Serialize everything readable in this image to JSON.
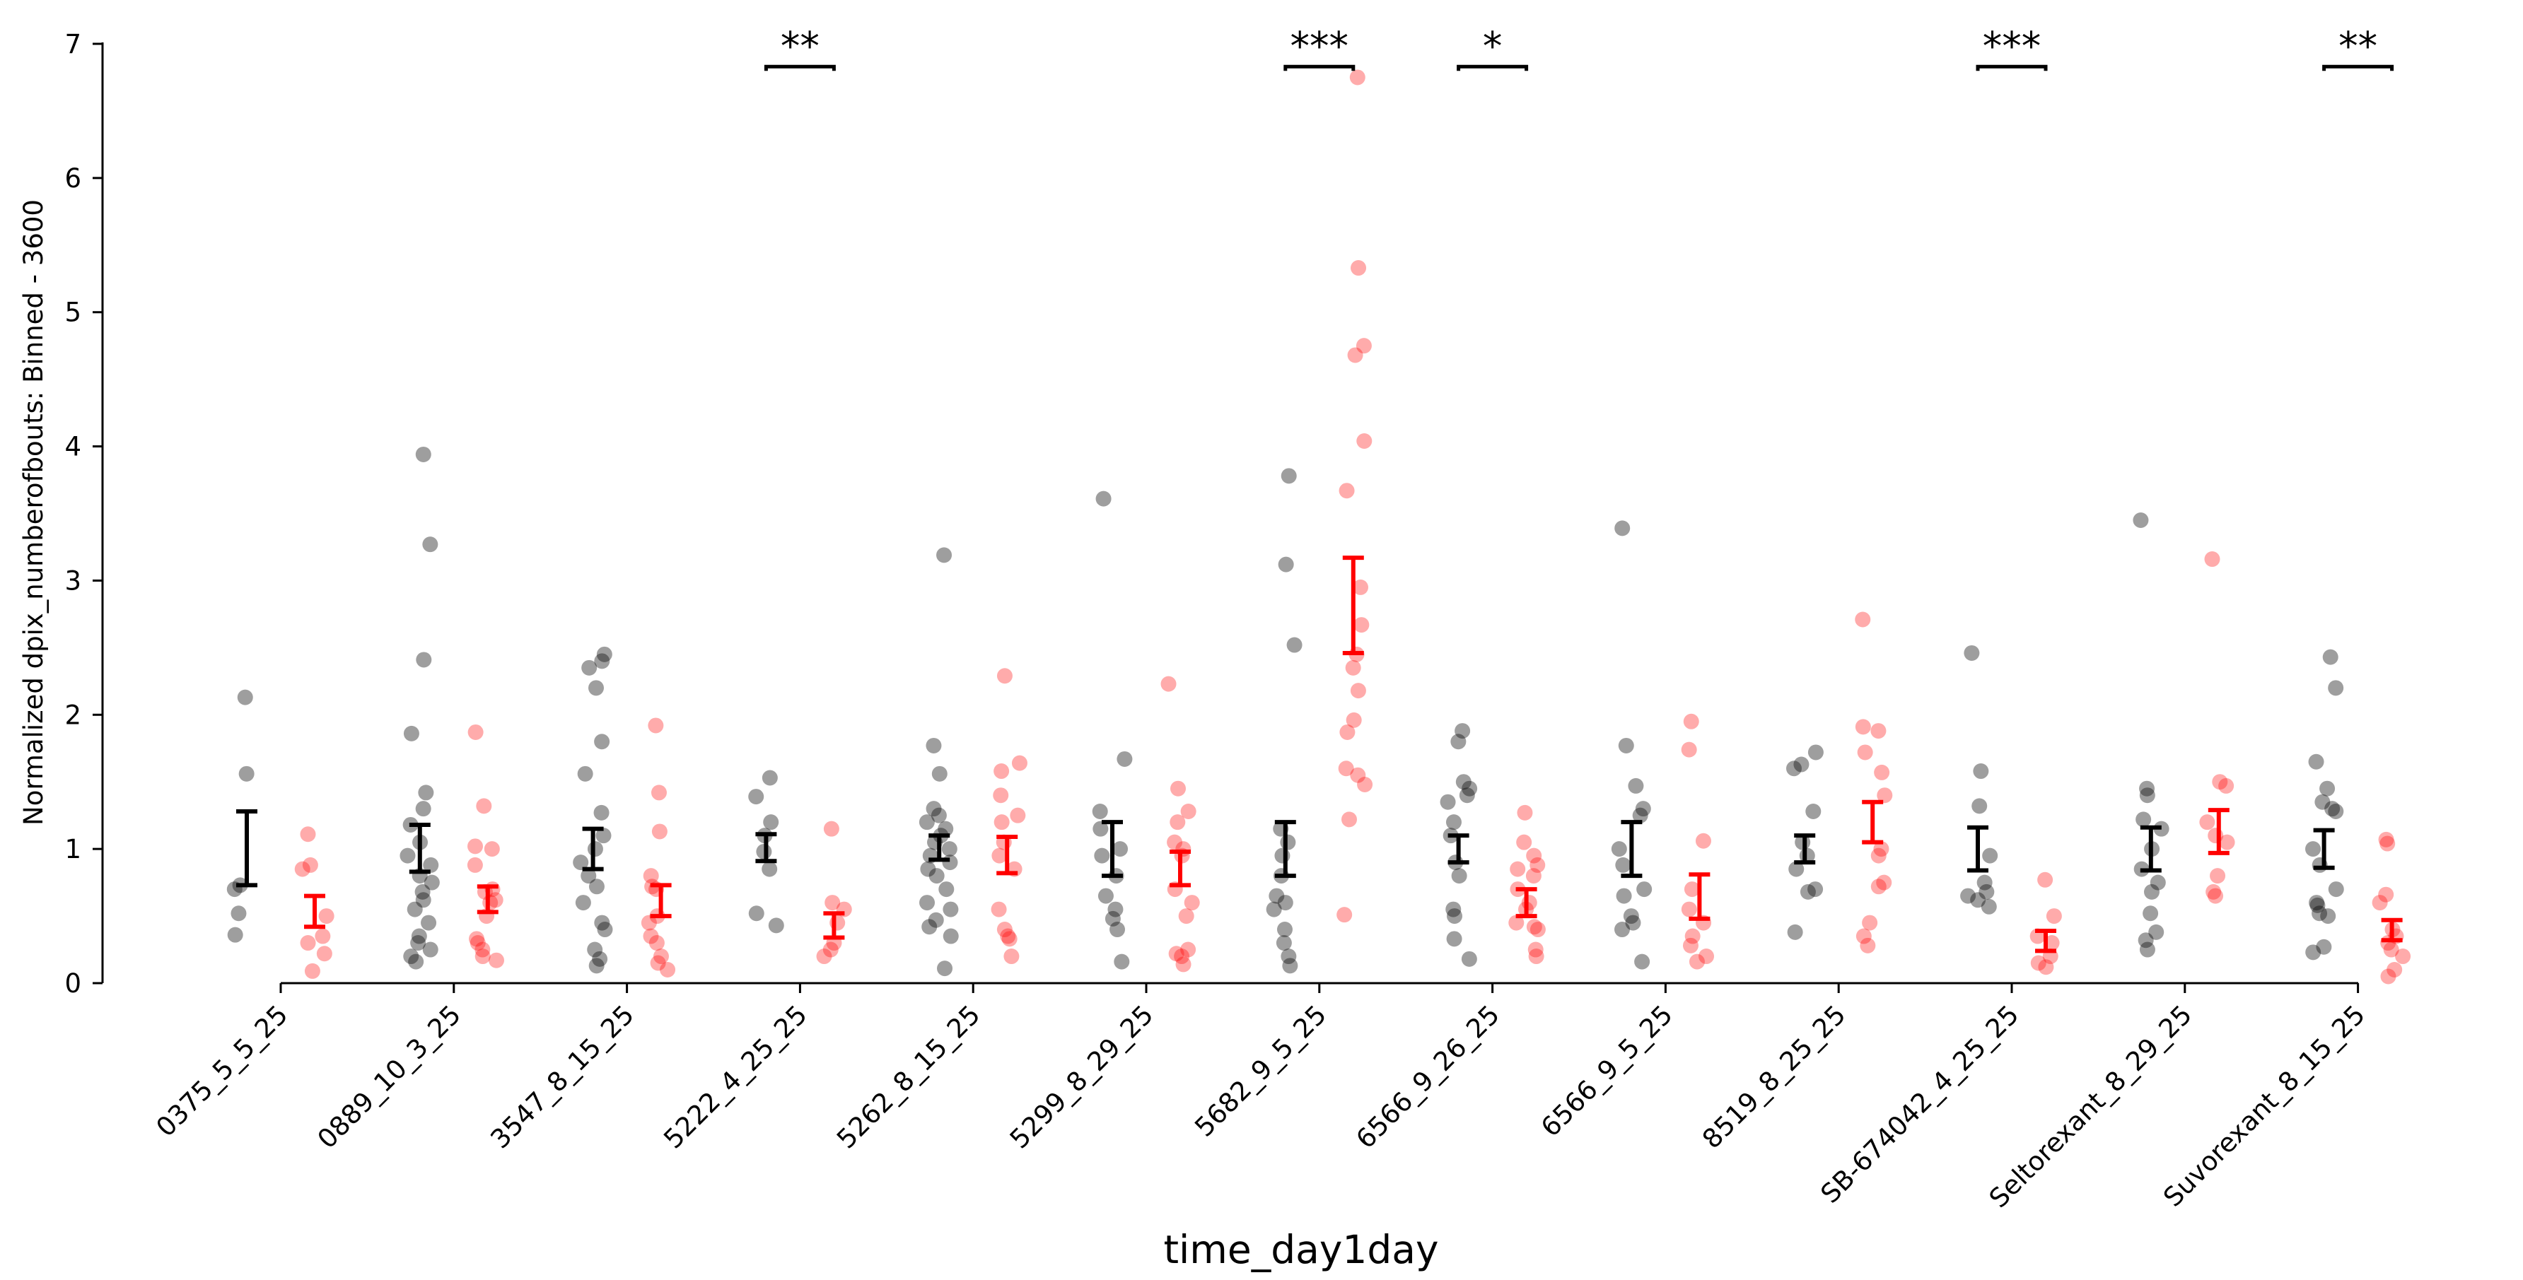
{
  "chart_data": {
    "type": "scatter",
    "title": "",
    "xlabel": "time_day1day",
    "ylabel": "Normalized dpix_numberofbouts: Binned - 3600",
    "ylim": [
      0,
      7
    ],
    "yticks": [
      "0",
      "1",
      "2",
      "3",
      "4",
      "5",
      "6",
      "7"
    ],
    "grid": false,
    "legend": "none",
    "categories": [
      "0375_5_5_25",
      "0889_10_3_25",
      "3547_8_15_25",
      "5222_4_25_25",
      "5262_8_15_25",
      "5299_8_29_25",
      "5682_9_5_25",
      "6566_9_26_25",
      "6566_9_5_25",
      "8519_8_25_25",
      "SB-674042_4_25_25",
      "Seltorexant_8_29_25",
      "Suvorexant_8_15_25"
    ],
    "colors": {
      "control": "#000000",
      "treatment": "#ff0000"
    },
    "series": [
      {
        "color": "#000000",
        "error_bars": [
          [
            0.73,
            1.28
          ],
          [
            0.83,
            1.18
          ],
          [
            0.85,
            1.15
          ],
          [
            0.91,
            1.11
          ],
          [
            0.92,
            1.1
          ],
          [
            0.8,
            1.2
          ],
          [
            0.8,
            1.2
          ],
          [
            0.9,
            1.1
          ],
          [
            0.8,
            1.2
          ],
          [
            0.9,
            1.1
          ],
          [
            0.84,
            1.16
          ],
          [
            0.84,
            1.16
          ],
          [
            0.86,
            1.14
          ]
        ],
        "points": [
          [
            2.13,
            1.56,
            0.73,
            0.7,
            0.52,
            0.36
          ],
          [
            3.94,
            3.27,
            2.41,
            1.86,
            1.42,
            1.3,
            1.18,
            1.05,
            0.95,
            0.88,
            0.8,
            0.75,
            0.68,
            0.62,
            0.55,
            0.45,
            0.35,
            0.3,
            0.25,
            0.2,
            0.16
          ],
          [
            2.45,
            2.4,
            2.35,
            2.2,
            1.8,
            1.56,
            1.27,
            1.1,
            1.0,
            0.9,
            0.8,
            0.72,
            0.6,
            0.45,
            0.4,
            0.25,
            0.18,
            0.13
          ],
          [
            1.53,
            1.39,
            1.2,
            1.1,
            0.98,
            0.85,
            0.52,
            0.43
          ],
          [
            3.19,
            1.77,
            1.56,
            1.3,
            1.25,
            1.2,
            1.15,
            1.1,
            1.05,
            1.0,
            0.95,
            0.9,
            0.85,
            0.8,
            0.7,
            0.6,
            0.55,
            0.47,
            0.42,
            0.35,
            0.11
          ],
          [
            3.61,
            1.67,
            1.28,
            1.15,
            1.0,
            0.95,
            0.8,
            0.65,
            0.55,
            0.48,
            0.4,
            0.16
          ],
          [
            3.78,
            3.12,
            2.52,
            1.15,
            1.05,
            0.95,
            0.8,
            0.65,
            0.6,
            0.55,
            0.4,
            0.3,
            0.2,
            0.13
          ],
          [
            1.88,
            1.8,
            1.5,
            1.45,
            1.4,
            1.35,
            1.2,
            1.1,
            0.9,
            0.8,
            0.55,
            0.5,
            0.33,
            0.18
          ],
          [
            3.39,
            1.77,
            1.47,
            1.3,
            1.25,
            1.0,
            0.88,
            0.7,
            0.65,
            0.5,
            0.45,
            0.4,
            0.16
          ],
          [
            1.72,
            1.63,
            1.6,
            1.28,
            1.05,
            0.95,
            0.85,
            0.7,
            0.68,
            0.38
          ],
          [
            2.46,
            1.58,
            1.32,
            0.95,
            0.75,
            0.68,
            0.65,
            0.62,
            0.57
          ],
          [
            3.45,
            1.45,
            1.4,
            1.22,
            1.15,
            1.0,
            0.85,
            0.75,
            0.68,
            0.52,
            0.38,
            0.32,
            0.25
          ],
          [
            2.43,
            2.2,
            1.65,
            1.45,
            1.35,
            1.3,
            1.28,
            1.0,
            0.88,
            0.7,
            0.6,
            0.58,
            0.52,
            0.5,
            0.27,
            0.23
          ]
        ]
      },
      {
        "color": "#ff0000",
        "error_bars": [
          [
            0.42,
            0.65
          ],
          [
            0.53,
            0.72
          ],
          [
            0.5,
            0.73
          ],
          [
            0.34,
            0.52
          ],
          [
            0.82,
            1.09
          ],
          [
            0.73,
            0.98
          ],
          [
            2.46,
            3.17
          ],
          [
            0.5,
            0.7
          ],
          [
            0.48,
            0.81
          ],
          [
            1.05,
            1.35
          ],
          [
            0.24,
            0.39
          ],
          [
            0.97,
            1.29
          ],
          [
            0.32,
            0.47
          ]
        ],
        "points": [
          [
            1.11,
            0.88,
            0.85,
            0.5,
            0.35,
            0.3,
            0.22,
            0.09
          ],
          [
            1.87,
            1.32,
            1.02,
            1.0,
            0.88,
            0.7,
            0.68,
            0.62,
            0.6,
            0.5,
            0.33,
            0.3,
            0.25,
            0.2,
            0.17
          ],
          [
            1.92,
            1.42,
            1.13,
            0.8,
            0.72,
            0.7,
            0.5,
            0.45,
            0.35,
            0.3,
            0.2,
            0.15,
            0.1
          ],
          [
            1.15,
            0.6,
            0.55,
            0.45,
            0.3,
            0.25,
            0.2
          ],
          [
            2.29,
            1.64,
            1.58,
            1.4,
            1.25,
            1.2,
            1.05,
            0.95,
            0.85,
            0.55,
            0.4,
            0.35,
            0.33,
            0.2
          ],
          [
            2.23,
            1.45,
            1.28,
            1.2,
            1.05,
            1.0,
            0.95,
            0.7,
            0.6,
            0.5,
            0.25,
            0.22,
            0.2,
            0.14
          ],
          [
            6.75,
            5.33,
            4.75,
            4.68,
            4.04,
            3.67,
            2.95,
            2.67,
            2.45,
            2.35,
            2.18,
            1.96,
            1.87,
            1.6,
            1.55,
            1.48,
            1.22,
            0.51
          ],
          [
            1.27,
            1.05,
            0.95,
            0.88,
            0.85,
            0.8,
            0.7,
            0.6,
            0.55,
            0.45,
            0.42,
            0.4,
            0.25,
            0.2
          ],
          [
            1.95,
            1.74,
            1.06,
            0.7,
            0.55,
            0.45,
            0.35,
            0.28,
            0.2,
            0.16
          ],
          [
            2.71,
            1.91,
            1.88,
            1.72,
            1.57,
            1.4,
            1.0,
            0.95,
            0.75,
            0.72,
            0.45,
            0.35,
            0.28
          ],
          [
            0.77,
            0.5,
            0.35,
            0.3,
            0.2,
            0.15,
            0.12
          ],
          [
            3.16,
            1.5,
            1.47,
            1.2,
            1.1,
            1.05,
            0.8,
            0.68,
            0.65
          ],
          [
            1.07,
            1.04,
            0.66,
            0.6,
            0.4,
            0.35,
            0.3,
            0.25,
            0.2,
            0.1,
            0.05
          ]
        ]
      }
    ],
    "significance": [
      {
        "category_index": 3,
        "label": "**"
      },
      {
        "category_index": 6,
        "label": "***"
      },
      {
        "category_index": 7,
        "label": "*"
      },
      {
        "category_index": 10,
        "label": "***"
      },
      {
        "category_index": 12,
        "label": "**"
      }
    ],
    "significance_bracket_y": 6.83
  }
}
